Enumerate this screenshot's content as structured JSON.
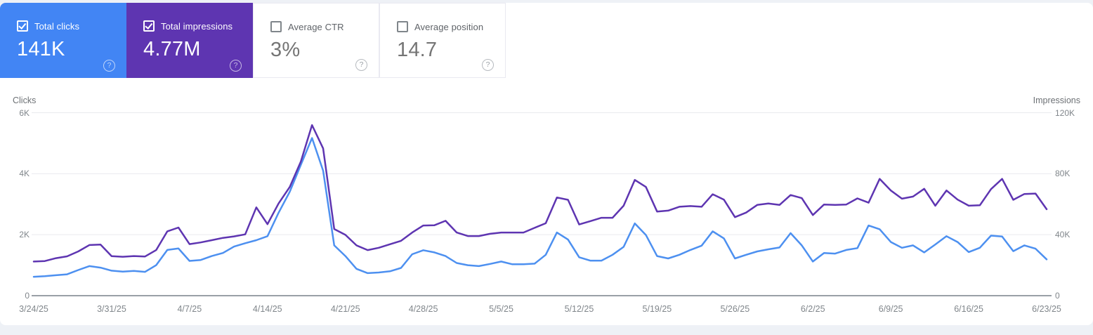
{
  "cards": [
    {
      "label": "Total clicks",
      "value": "141K",
      "checked": true,
      "bg": "#4285f4"
    },
    {
      "label": "Total impressions",
      "value": "4.77M",
      "checked": true,
      "bg": "#5e35b1"
    },
    {
      "label": "Average CTR",
      "value": "3%",
      "checked": false,
      "bg": "#ffffff"
    },
    {
      "label": "Average position",
      "value": "14.7",
      "checked": false,
      "bg": "#ffffff"
    }
  ],
  "chart_data": {
    "type": "line",
    "grid": "horizontal",
    "left_axis": {
      "title": "Clicks",
      "max": 6000,
      "ticks_top_to_bottom": [
        "6K",
        "4K",
        "2K",
        "0"
      ]
    },
    "right_axis": {
      "title": "Impressions",
      "max": 120000,
      "ticks_top_to_bottom": [
        "120K",
        "80K",
        "40K",
        "0"
      ]
    },
    "x_tick_labels": [
      "3/24/25",
      "3/31/25",
      "4/7/25",
      "4/14/25",
      "4/21/25",
      "4/28/25",
      "5/5/25",
      "5/12/25",
      "5/19/25",
      "5/26/25",
      "6/2/25",
      "6/9/25",
      "6/16/25",
      "6/23/25"
    ],
    "points_per_tick": 7,
    "colors": {
      "gridline": "#e9eaee",
      "baseline": "#9aa0a6"
    },
    "series": [
      {
        "name": "Total clicks",
        "axis": "left",
        "color": "#4d90f0",
        "values": [
          620,
          640,
          670,
          700,
          840,
          970,
          920,
          820,
          790,
          810,
          780,
          1000,
          1500,
          1550,
          1140,
          1170,
          1300,
          1400,
          1610,
          1720,
          1820,
          1950,
          2720,
          3410,
          4290,
          5170,
          4100,
          1650,
          1300,
          880,
          740,
          760,
          800,
          910,
          1360,
          1490,
          1420,
          1300,
          1070,
          1000,
          970,
          1040,
          1120,
          1030,
          1030,
          1050,
          1340,
          2070,
          1840,
          1260,
          1150,
          1150,
          1340,
          1600,
          2370,
          1990,
          1300,
          1220,
          1340,
          1500,
          1640,
          2110,
          1880,
          1220,
          1340,
          1450,
          1520,
          1580,
          2050,
          1650,
          1120,
          1400,
          1380,
          1500,
          1560,
          2300,
          2180,
          1760,
          1570,
          1650,
          1420,
          1680,
          1950,
          1760,
          1430,
          1570,
          1970,
          1940,
          1460,
          1650,
          1540,
          1190
        ]
      },
      {
        "name": "Total impressions",
        "axis": "right",
        "color": "#5e35b1",
        "values": [
          22400,
          22700,
          24600,
          25800,
          29000,
          33200,
          33500,
          25900,
          25500,
          26000,
          25700,
          29900,
          42200,
          44700,
          33800,
          34900,
          36400,
          37900,
          38900,
          40200,
          57900,
          46900,
          60500,
          71300,
          88000,
          111900,
          96600,
          43700,
          39900,
          33000,
          29900,
          31400,
          33700,
          36000,
          41400,
          46000,
          46200,
          49100,
          41400,
          39100,
          39100,
          40600,
          41400,
          41400,
          41400,
          44500,
          47500,
          64400,
          62900,
          46700,
          48900,
          51100,
          51100,
          59000,
          75900,
          71300,
          55200,
          55800,
          58300,
          58800,
          58300,
          66500,
          63000,
          51500,
          54500,
          59500,
          60500,
          59500,
          66000,
          64000,
          52900,
          59800,
          59500,
          59800,
          63800,
          61000,
          76600,
          69000,
          63600,
          65000,
          70100,
          59000,
          69000,
          63000,
          59000,
          59300,
          69900,
          76600,
          62900,
          66700,
          67000,
          56700
        ]
      }
    ]
  }
}
